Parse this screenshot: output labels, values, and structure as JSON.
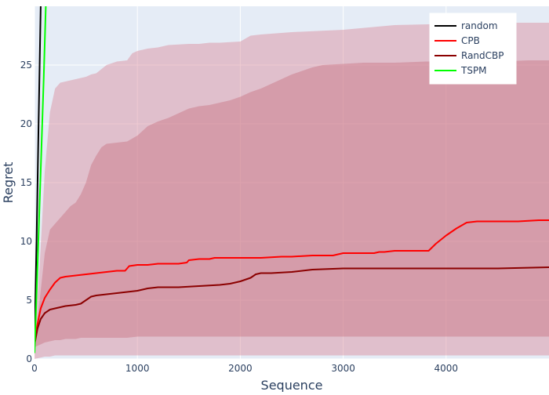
{
  "chart_data": {
    "type": "line",
    "xlabel": "Sequence",
    "ylabel": "Regret",
    "xlim": [
      0,
      5000
    ],
    "ylim": [
      0,
      30
    ],
    "x_ticks": [
      0,
      1000,
      2000,
      3000,
      4000
    ],
    "y_ticks": [
      0,
      5,
      10,
      15,
      20,
      25
    ],
    "x_tick_labels": [
      "0",
      "1000",
      "2000",
      "3000",
      "4000"
    ],
    "y_tick_labels": [
      "0",
      "5",
      "10",
      "15",
      "20",
      "25"
    ],
    "grid": true,
    "plot_background": "#e5ecf6",
    "legend_position": "top-right",
    "series": [
      {
        "name": "random",
        "color": "#000000",
        "x": [
          0,
          20,
          40,
          60
        ],
        "y": [
          1.5,
          10,
          20,
          30
        ]
      },
      {
        "name": "CPB",
        "color": "#ff0000",
        "x": [
          0,
          30,
          60,
          100,
          150,
          200,
          250,
          300,
          400,
          500,
          600,
          700,
          800,
          880,
          920,
          1000,
          1100,
          1200,
          1300,
          1400,
          1480,
          1500,
          1600,
          1700,
          1750,
          1800,
          2000,
          2200,
          2400,
          2500,
          2700,
          2900,
          2950,
          3000,
          3200,
          3300,
          3350,
          3400,
          3500,
          3700,
          3830,
          3900,
          4000,
          4100,
          4200,
          4300,
          4500,
          4700,
          4900,
          5000
        ],
        "y": [
          1.5,
          3.0,
          4.3,
          5.2,
          5.9,
          6.5,
          6.9,
          7.0,
          7.1,
          7.2,
          7.3,
          7.4,
          7.5,
          7.5,
          7.9,
          8.0,
          8.0,
          8.1,
          8.1,
          8.1,
          8.2,
          8.4,
          8.5,
          8.5,
          8.6,
          8.6,
          8.6,
          8.6,
          8.7,
          8.7,
          8.8,
          8.8,
          8.9,
          9.0,
          9.0,
          9.0,
          9.1,
          9.1,
          9.2,
          9.2,
          9.2,
          9.8,
          10.5,
          11.1,
          11.6,
          11.7,
          11.7,
          11.7,
          11.8,
          11.8
        ]
      },
      {
        "name": "RandCBP",
        "color": "#8b0000",
        "x": [
          0,
          30,
          60,
          100,
          150,
          200,
          250,
          300,
          400,
          450,
          500,
          550,
          600,
          700,
          800,
          900,
          1000,
          1100,
          1200,
          1400,
          1600,
          1800,
          1900,
          2000,
          2100,
          2150,
          2200,
          2300,
          2500,
          2700,
          3000,
          3500,
          4000,
          4500,
          5000
        ],
        "y": [
          1.2,
          2.6,
          3.4,
          3.9,
          4.2,
          4.3,
          4.4,
          4.5,
          4.6,
          4.7,
          5.0,
          5.3,
          5.4,
          5.5,
          5.6,
          5.7,
          5.8,
          6.0,
          6.1,
          6.1,
          6.2,
          6.3,
          6.4,
          6.6,
          6.9,
          7.2,
          7.3,
          7.3,
          7.4,
          7.6,
          7.7,
          7.7,
          7.7,
          7.7,
          7.8
        ]
      },
      {
        "name": "TSPM",
        "color": "#00ff00",
        "x": [
          0,
          30,
          60,
          90,
          110
        ],
        "y": [
          0.5,
          8,
          16,
          24,
          30
        ]
      }
    ],
    "bands": [
      {
        "color": "#d98a98",
        "opacity": 0.45,
        "x": [
          0,
          50,
          100,
          150,
          200,
          250,
          300,
          400,
          500,
          550,
          600,
          700,
          800,
          900,
          950,
          1000,
          1100,
          1200,
          1300,
          1500,
          1600,
          1700,
          1800,
          2000,
          2100,
          2200,
          2500,
          3000,
          3500,
          4000,
          4500,
          5000
        ],
        "upper": [
          1.5,
          8,
          16,
          21,
          23,
          23.5,
          23.6,
          23.8,
          24.0,
          24.2,
          24.3,
          25.0,
          25.3,
          25.4,
          26.0,
          26.2,
          26.4,
          26.5,
          26.7,
          26.8,
          26.8,
          26.9,
          26.9,
          27.0,
          27.5,
          27.6,
          27.8,
          28.0,
          28.4,
          28.5,
          28.6,
          28.6
        ],
        "lower": [
          0.0,
          0.1,
          0.2,
          0.2,
          0.3,
          0.3,
          0.3,
          0.3,
          0.3,
          0.3,
          0.3,
          0.3,
          0.3,
          0.3,
          0.3,
          0.3,
          0.3,
          0.3,
          0.3,
          0.3,
          0.3,
          0.3,
          0.3,
          0.3,
          0.3,
          0.3,
          0.3,
          0.3,
          0.3,
          0.3,
          0.3,
          0.3
        ]
      },
      {
        "color": "#c77080",
        "opacity": 0.45,
        "x": [
          0,
          50,
          100,
          150,
          200,
          250,
          300,
          350,
          400,
          450,
          500,
          550,
          600,
          650,
          700,
          800,
          900,
          1000,
          1100,
          1200,
          1300,
          1400,
          1500,
          1600,
          1700,
          1800,
          1900,
          2000,
          2100,
          2200,
          2300,
          2400,
          2500,
          2600,
          2700,
          2800,
          3000,
          3200,
          3500,
          3800,
          4000,
          4200,
          4500,
          4800,
          5000
        ],
        "upper": [
          1.5,
          5,
          9,
          11,
          11.5,
          12,
          12.5,
          13,
          13.3,
          14,
          15,
          16.5,
          17.3,
          18,
          18.3,
          18.4,
          18.5,
          19.0,
          19.8,
          20.2,
          20.5,
          20.9,
          21.3,
          21.5,
          21.6,
          21.8,
          22.0,
          22.3,
          22.7,
          23.0,
          23.4,
          23.8,
          24.2,
          24.5,
          24.8,
          25.0,
          25.1,
          25.2,
          25.2,
          25.3,
          25.3,
          25.3,
          25.3,
          25.4,
          25.4
        ],
        "lower": [
          1.0,
          1.2,
          1.4,
          1.5,
          1.6,
          1.6,
          1.7,
          1.7,
          1.7,
          1.8,
          1.8,
          1.8,
          1.8,
          1.8,
          1.8,
          1.8,
          1.8,
          1.9,
          1.9,
          1.9,
          1.9,
          1.9,
          1.9,
          1.9,
          1.9,
          1.9,
          1.9,
          1.9,
          1.9,
          1.9,
          1.9,
          1.9,
          1.9,
          1.9,
          1.9,
          1.9,
          1.9,
          1.9,
          1.9,
          1.9,
          1.9,
          1.9,
          1.9,
          1.9,
          1.9
        ]
      }
    ]
  }
}
